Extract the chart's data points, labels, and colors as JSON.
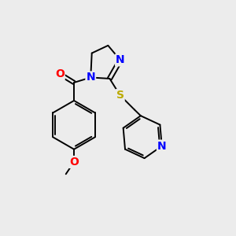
{
  "bg_color": "#ececec",
  "bond_color": "#000000",
  "atom_colors": {
    "N": "#0000ff",
    "O": "#ff0000",
    "S": "#bbaa00",
    "C": "#000000"
  },
  "font_size": 10,
  "figsize": [
    3.0,
    3.0
  ],
  "dpi": 100
}
